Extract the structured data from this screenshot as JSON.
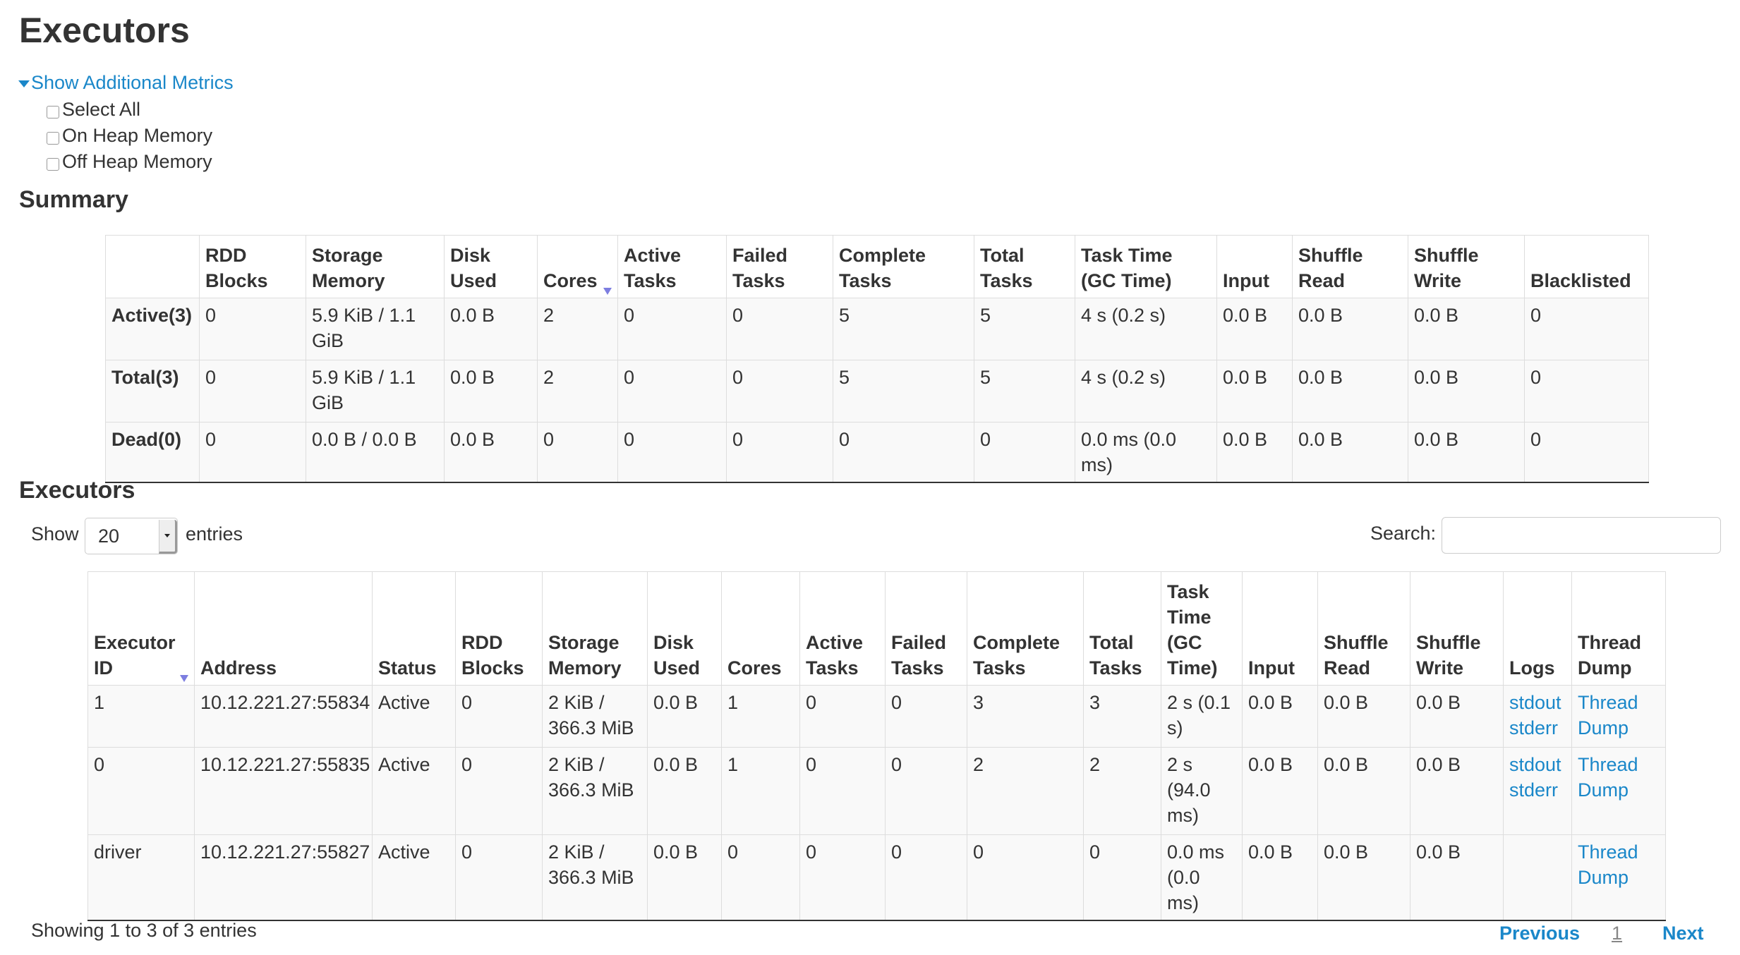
{
  "page_title": "Executors",
  "metrics_toggle": "Show Additional Metrics",
  "metrics_options": [
    "Select All",
    "On Heap Memory",
    "Off Heap Memory"
  ],
  "summary": {
    "heading": "Summary",
    "columns": [
      "",
      "RDD Blocks",
      "Storage Memory",
      "Disk Used",
      "Cores",
      "Active Tasks",
      "Failed Tasks",
      "Complete Tasks",
      "Total Tasks",
      "Task Time (GC Time)",
      "Input",
      "Shuffle Read",
      "Shuffle Write",
      "Blacklisted"
    ],
    "sorted_column": "Cores",
    "rows": [
      [
        "Active(3)",
        "0",
        "5.9 KiB / 1.1 GiB",
        "0.0 B",
        "2",
        "0",
        "0",
        "5",
        "5",
        "4 s (0.2 s)",
        "0.0 B",
        "0.0 B",
        "0.0 B",
        "0"
      ],
      [
        "Total(3)",
        "0",
        "5.9 KiB / 1.1 GiB",
        "0.0 B",
        "2",
        "0",
        "0",
        "5",
        "5",
        "4 s (0.2 s)",
        "0.0 B",
        "0.0 B",
        "0.0 B",
        "0"
      ],
      [
        "Dead(0)",
        "0",
        "0.0 B / 0.0 B",
        "0.0 B",
        "0",
        "0",
        "0",
        "0",
        "0",
        "0.0 ms (0.0 ms)",
        "0.0 B",
        "0.0 B",
        "0.0 B",
        "0"
      ]
    ]
  },
  "executors": {
    "heading": "Executors",
    "show_label": "Show",
    "page_size": "20",
    "entries_label": "entries",
    "search_label": "Search:",
    "search_value": "",
    "columns": [
      "Executor ID",
      "Address",
      "Status",
      "RDD Blocks",
      "Storage Memory",
      "Disk Used",
      "Cores",
      "Active Tasks",
      "Failed Tasks",
      "Complete Tasks",
      "Total Tasks",
      "Task Time (GC Time)",
      "Input",
      "Shuffle Read",
      "Shuffle Write",
      "Logs",
      "Thread Dump"
    ],
    "sorted_column": "Executor ID",
    "rows": [
      {
        "cells": [
          "1",
          "10.12.221.27:55834",
          "Active",
          "0",
          "2 KiB / 366.3 MiB",
          "0.0 B",
          "1",
          "0",
          "0",
          "3",
          "3",
          "2 s (0.1 s)",
          "0.0 B",
          "0.0 B",
          "0.0 B"
        ],
        "logs": [
          "stdout",
          "stderr"
        ],
        "thread_dump": "Thread Dump"
      },
      {
        "cells": [
          "0",
          "10.12.221.27:55835",
          "Active",
          "0",
          "2 KiB / 366.3 MiB",
          "0.0 B",
          "1",
          "0",
          "0",
          "2",
          "2",
          "2 s (94.0 ms)",
          "0.0 B",
          "0.0 B",
          "0.0 B"
        ],
        "logs": [
          "stdout",
          "stderr"
        ],
        "thread_dump": "Thread Dump"
      },
      {
        "cells": [
          "driver",
          "10.12.221.27:55827",
          "Active",
          "0",
          "2 KiB / 366.3 MiB",
          "0.0 B",
          "0",
          "0",
          "0",
          "0",
          "0",
          "0.0 ms (0.0 ms)",
          "0.0 B",
          "0.0 B",
          "0.0 B"
        ],
        "logs": [],
        "thread_dump": "Thread Dump"
      }
    ],
    "info": "Showing 1 to 3 of 3 entries",
    "pagination": {
      "previous": "Previous",
      "current": "1",
      "next": "Next"
    }
  },
  "colors": {
    "link": "#1a87c9",
    "text": "#333333",
    "sort_arrow": "#7d7ee0",
    "row_bg": "#f9f9f9"
  }
}
